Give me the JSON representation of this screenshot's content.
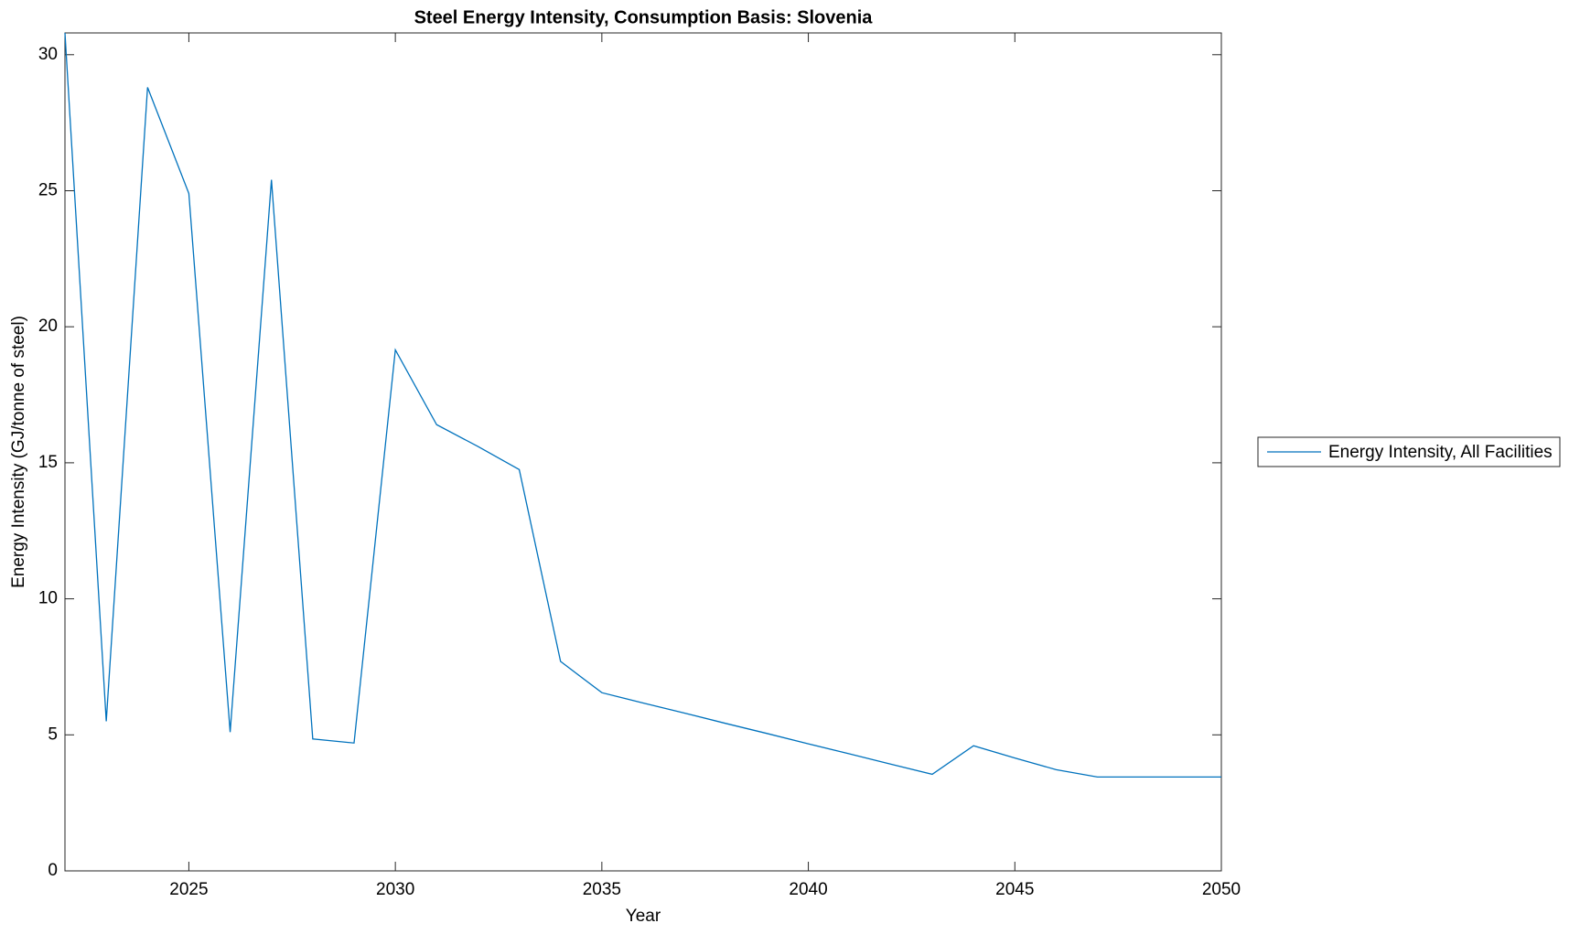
{
  "chart_data": {
    "type": "line",
    "title": "Steel Energy Intensity, Consumption Basis: Slovenia",
    "x_label": "Year",
    "y_label": "Energy Intensity (GJ/tonne of steel)",
    "x": [
      2022,
      2023,
      2024,
      2025,
      2026,
      2027,
      2028,
      2029,
      2030,
      2031,
      2032,
      2033,
      2034,
      2035,
      2036,
      2037,
      2038,
      2039,
      2040,
      2041,
      2042,
      2043,
      2044,
      2045,
      2046,
      2047,
      2048,
      2049,
      2050
    ],
    "series": [
      {
        "name": "Energy Intensity, All Facilities",
        "color": "#0072bd",
        "values": [
          30.8,
          5.5,
          28.8,
          24.9,
          5.1,
          25.4,
          4.85,
          4.7,
          19.15,
          16.4,
          15.6,
          14.75,
          7.7,
          6.55,
          6.17,
          5.8,
          5.42,
          5.05,
          4.67,
          4.3,
          3.92,
          3.55,
          4.6,
          4.15,
          3.72,
          3.45,
          3.45,
          3.45,
          3.45
        ]
      }
    ],
    "xlim": [
      2022,
      2050
    ],
    "xticks": [
      2025,
      2030,
      2035,
      2040,
      2045,
      2050
    ],
    "ylim": [
      0,
      30.8
    ],
    "yticks": [
      0,
      5,
      10,
      15,
      20,
      25,
      30
    ],
    "legend": "outside-right"
  }
}
